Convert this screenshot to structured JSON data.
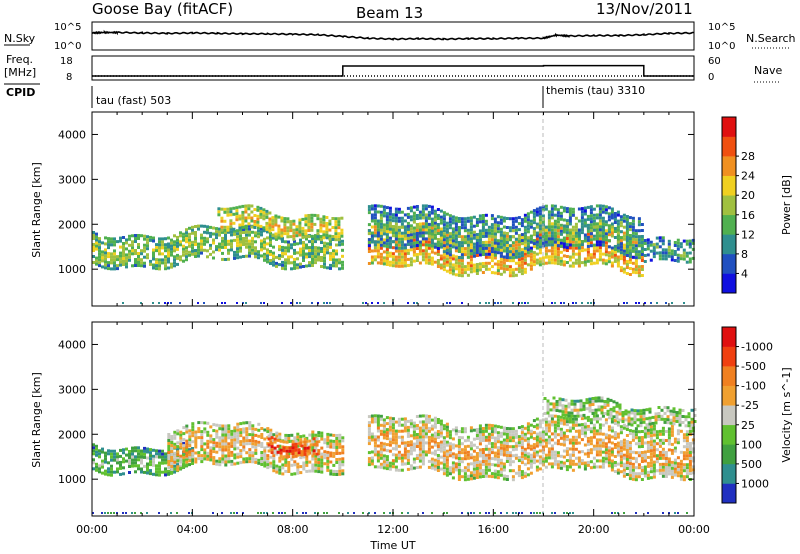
{
  "header": {
    "station": "Goose Bay (fitACF)",
    "beam": "Beam 13",
    "date": "13/Nov/2011"
  },
  "strips": {
    "nsky": {
      "label": "N.Sky",
      "left_ticks": [
        "10^5",
        "10^0"
      ],
      "right_ticks": [
        "10^5",
        "10^0"
      ],
      "right_label": "N.Search",
      "series": [
        {
          "name": "N.Sky",
          "x": [
            0,
            0.5,
            1,
            2,
            3,
            4,
            5,
            6,
            7,
            8,
            9,
            10,
            11,
            12,
            13,
            14,
            15,
            16,
            17,
            18,
            18.5,
            19,
            20,
            21,
            22,
            23,
            24
          ],
          "y": [
            3.2,
            3.3,
            3.3,
            3.2,
            3.1,
            3.2,
            3.1,
            3.0,
            3.0,
            2.9,
            2.8,
            2.4,
            2.0,
            1.8,
            1.9,
            1.8,
            1.9,
            1.9,
            2.0,
            2.0,
            2.7,
            2.5,
            2.6,
            2.6,
            2.8,
            3.1,
            3.2
          ]
        }
      ]
    },
    "freq": {
      "label": "Freq.",
      "unit": "[MHz]",
      "left_ticks": [
        "18",
        "8"
      ],
      "right_ticks": [
        "60",
        "0"
      ],
      "right_label": "Nave",
      "series": [
        {
          "name": "Freq.",
          "x": [
            0,
            10,
            10,
            18,
            18,
            22,
            22,
            24
          ],
          "y": [
            9.0,
            9.0,
            14.0,
            14.0,
            14.2,
            14.2,
            9.0,
            9.0
          ]
        }
      ]
    },
    "cpid": {
      "label": "CPID",
      "segments": [
        {
          "label": "tau (fast) 503",
          "start": 0,
          "end": 18
        },
        {
          "label": "themis (tau) 3310",
          "start": 18,
          "end": 24
        }
      ]
    }
  },
  "x_axis": {
    "label": "Time UT",
    "ticks": [
      "00:00",
      "04:00",
      "08:00",
      "12:00",
      "16:00",
      "20:00",
      "00:00"
    ]
  },
  "chart_data": [
    {
      "type": "heatmap",
      "name": "power",
      "xlabel": "Time UT",
      "ylabel": "Slant Range [km]",
      "xlim": [
        0,
        24
      ],
      "ylim": [
        180,
        4500
      ],
      "yticks": [
        "1000",
        "2000",
        "3000",
        "4000"
      ],
      "colorbar": {
        "label": "Power [dB]",
        "ticks": [
          "4",
          "8",
          "12",
          "16",
          "20",
          "24",
          "28"
        ],
        "colors": [
          "#1010e0",
          "#2050c0",
          "#2f8f8f",
          "#50b050",
          "#a0c040",
          "#f0d020",
          "#f09020",
          "#f05010",
          "#e01010"
        ]
      },
      "regions": [
        {
          "t0": 0.0,
          "t1": 10.0,
          "r_center": 1500,
          "r_width": 700,
          "level": 3
        },
        {
          "t0": 5.0,
          "t1": 10.0,
          "r_center": 2050,
          "r_width": 500,
          "level": 4
        },
        {
          "t0": 11.0,
          "t1": 22.0,
          "r_center": 1450,
          "r_width": 900,
          "level": 5
        },
        {
          "t0": 11.0,
          "t1": 22.0,
          "r_center": 1850,
          "r_width": 900,
          "level": 2
        },
        {
          "t0": 22.0,
          "t1": 24.0,
          "r_center": 1550,
          "r_width": 500,
          "level": 2
        }
      ]
    },
    {
      "type": "heatmap",
      "name": "velocity",
      "xlabel": "Time UT",
      "ylabel": "Slant Range [km]",
      "xlim": [
        0,
        24
      ],
      "ylim": [
        180,
        4500
      ],
      "yticks": [
        "1000",
        "2000",
        "3000",
        "4000"
      ],
      "colorbar": {
        "label": "Velocity [m s^-1]",
        "ticks": [
          "1000",
          "500",
          "100",
          "25",
          "-25",
          "-100",
          "-500",
          "-1000"
        ],
        "colors": [
          "#2030c0",
          "#2f8f8f",
          "#40a040",
          "#60c030",
          "#c8c8c0",
          "#f0a030",
          "#f08020",
          "#f04010",
          "#e01010"
        ]
      },
      "regions": [
        {
          "t0": 0.0,
          "t1": 4.0,
          "r_center": 1500,
          "r_width": 600,
          "level": "100"
        },
        {
          "t0": 3.0,
          "t1": 10.0,
          "r_center": 1700,
          "r_width": 900,
          "level": "-25"
        },
        {
          "t0": 7.0,
          "t1": 9.0,
          "r_center": 1800,
          "r_width": 400,
          "level": "-500"
        },
        {
          "t0": 11.0,
          "t1": 24.0,
          "r_center": 1700,
          "r_width": 1200,
          "level": "-25"
        },
        {
          "t0": 18.0,
          "t1": 24.0,
          "r_center": 2500,
          "r_width": 400,
          "level": "25"
        }
      ]
    }
  ]
}
